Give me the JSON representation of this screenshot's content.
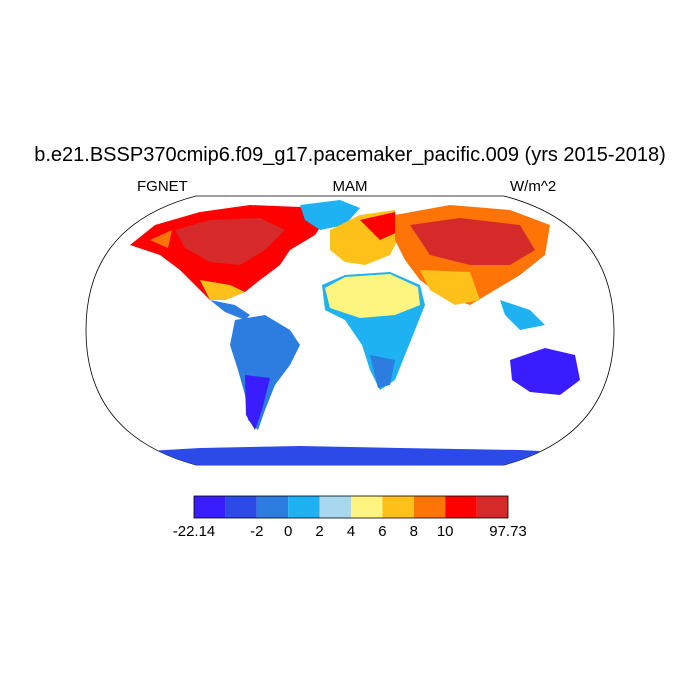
{
  "title": "b.e21.BSSP370cmip6.f09_g17.pacemaker_pacific.009 (yrs 2015-2018)",
  "left_label": "FGNET",
  "center_label": "MAM",
  "right_label": "W/m^2",
  "colorbar": {
    "colors": [
      "#3a1dff",
      "#2c4ae8",
      "#2d7ce0",
      "#1eb2f2",
      "#a8d8f0",
      "#fef480",
      "#fec119",
      "#fe7407",
      "#fe0000",
      "#d42a2a"
    ],
    "labels": [
      "-22.14",
      "-2",
      "0",
      "2",
      "4",
      "6",
      "8",
      "10",
      "97.73"
    ]
  }
}
